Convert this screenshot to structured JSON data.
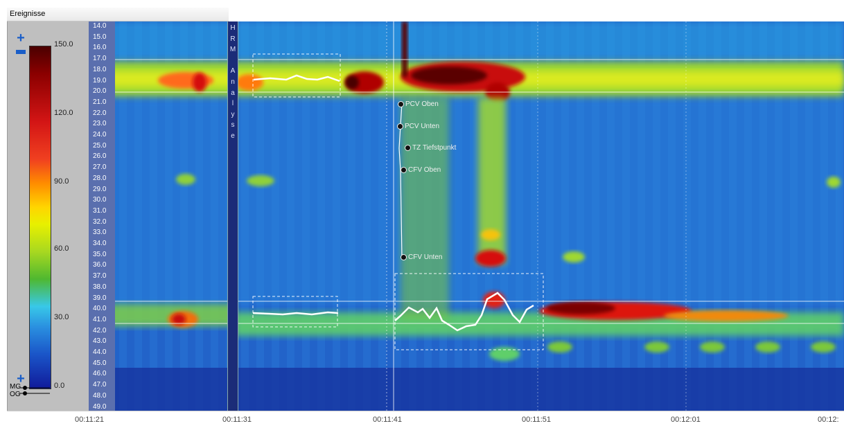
{
  "panel": {
    "title": "Ereignisse"
  },
  "colorbar": {
    "ticks": [
      "150.0",
      "120.0",
      "90.0",
      "60.0",
      "30.0",
      "0.0"
    ],
    "markers": [
      "MG",
      "OG"
    ]
  },
  "y_axis": {
    "ticks": [
      "14.0",
      "15.0",
      "16.0",
      "17.0",
      "18.0",
      "19.0",
      "20.0",
      "21.0",
      "22.0",
      "23.0",
      "24.0",
      "25.0",
      "26.0",
      "27.0",
      "28.0",
      "29.0",
      "30.0",
      "31.0",
      "32.0",
      "33.0",
      "34.0",
      "35.0",
      "36.0",
      "37.0",
      "38.0",
      "39.0",
      "40.0",
      "41.0",
      "42.0",
      "43.0",
      "44.0",
      "45.0",
      "46.0",
      "47.0",
      "48.0",
      "49.0"
    ]
  },
  "hrm_strip": {
    "letters": [
      "H",
      "R",
      "M",
      "",
      "A",
      "n",
      "a",
      "l",
      "y",
      "s",
      "e"
    ]
  },
  "events": [
    {
      "label": "PCV Oben"
    },
    {
      "label": "PCV Unten"
    },
    {
      "label": "TZ Tiefstpunkt"
    },
    {
      "label": "CFV Oben"
    },
    {
      "label": "CFV Unten"
    }
  ],
  "x_axis": {
    "ticks": [
      "00:11:21",
      "00:11:31",
      "00:11:41",
      "00:11:51",
      "00:12:01",
      "00:12:"
    ]
  },
  "colors": {
    "axis_bg": "#5a6fae",
    "strip_bg": "#1b2c78"
  }
}
